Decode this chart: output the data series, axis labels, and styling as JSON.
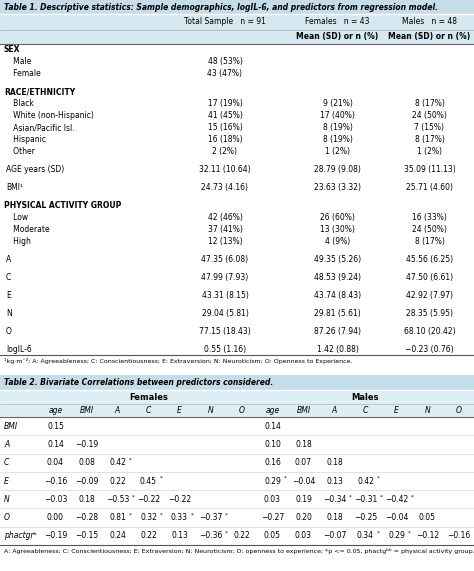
{
  "title1": "Table 1. Descriptive statistics: Sample demographics, logIL-6, and predictors from regression model.",
  "title2": "Table 2. Bivariate Correlations between predictors considered.",
  "table1_headers": [
    "",
    "Total Sample   n = 91",
    "Females   n = 43",
    "Males   n = 48"
  ],
  "table1_subheaders": [
    "",
    "",
    "Mean (SD) or n (%)",
    "Mean (SD) or n (%)"
  ],
  "table1_rows": [
    [
      "SEX",
      "",
      "",
      ""
    ],
    [
      "   Male",
      "48 (53%)",
      "",
      ""
    ],
    [
      "   Female",
      "43 (47%)",
      "",
      ""
    ],
    [
      "",
      "",
      "",
      ""
    ],
    [
      "RACE/ETHNICITY",
      "",
      "",
      ""
    ],
    [
      "   Black",
      "17 (19%)",
      "9 (21%)",
      "8 (17%)"
    ],
    [
      "   White (non-Hispanic)",
      "41 (45%)",
      "17 (40%)",
      "24 (50%)"
    ],
    [
      "   Asian/Pacific Isl.",
      "15 (16%)",
      "8 (19%)",
      "7 (15%)"
    ],
    [
      "   Hispanic",
      "16 (18%)",
      "8 (19%)",
      "8 (17%)"
    ],
    [
      "   Other",
      "2 (2%)",
      "1 (2%)",
      "1 (2%)"
    ],
    [
      "",
      "",
      "",
      ""
    ],
    [
      "AGE years (SD)",
      "32.11 (10.64)",
      "28.79 (9.08)",
      "35.09 (11.13)"
    ],
    [
      "",
      "",
      "",
      ""
    ],
    [
      "BMI¹",
      "24.73 (4.16)",
      "23.63 (3.32)",
      "25.71 (4.60)"
    ],
    [
      "",
      "",
      "",
      ""
    ],
    [
      "PHYSICAL ACTIVITY GROUP",
      "",
      "",
      ""
    ],
    [
      "   Low",
      "42 (46%)",
      "26 (60%)",
      "16 (33%)"
    ],
    [
      "   Moderate",
      "37 (41%)",
      "13 (30%)",
      "24 (50%)"
    ],
    [
      "   High",
      "12 (13%)",
      "4 (9%)",
      "8 (17%)"
    ],
    [
      "",
      "",
      "",
      ""
    ],
    [
      "A",
      "47.35 (6.08)",
      "49.35 (5.26)",
      "45.56 (6.25)"
    ],
    [
      "",
      "",
      "",
      ""
    ],
    [
      "C",
      "47.99 (7.93)",
      "48.53 (9.24)",
      "47.50 (6.61)"
    ],
    [
      "",
      "",
      "",
      ""
    ],
    [
      "E",
      "43.31 (8.15)",
      "43.74 (8.43)",
      "42.92 (7.97)"
    ],
    [
      "",
      "",
      "",
      ""
    ],
    [
      "N",
      "29.04 (5.81)",
      "29.81 (5.61)",
      "28.35 (5.95)"
    ],
    [
      "",
      "",
      "",
      ""
    ],
    [
      "O",
      "77.15 (18.43)",
      "87.26 (7.94)",
      "68.10 (20.42)"
    ],
    [
      "",
      "",
      "",
      ""
    ],
    [
      "logIL-6",
      "0.55 (1.16)",
      "1.42 (0.88)",
      "−0.23 (0.76)"
    ]
  ],
  "table1_footnote": "¹kg·m⁻²; A: Agreeableness; C: Conscientiousness; E: Extraversion; N: Neuroticism; O: Openness to Experience.",
  "table2_col_names": [
    "age",
    "BMI",
    "A",
    "C",
    "E",
    "N",
    "O"
  ],
  "table2_row_labels": [
    "BMI",
    "A",
    "C",
    "E",
    "N",
    "O",
    "phactgrᵇ"
  ],
  "table2_females": [
    [
      "0.15",
      "",
      "",
      "",
      "",
      "",
      ""
    ],
    [
      "0.14",
      "−0.19",
      "",
      "",
      "",
      "",
      ""
    ],
    [
      "0.04",
      "0.08",
      "0.42*",
      "",
      "",
      "",
      ""
    ],
    [
      "−0.16",
      "−0.09",
      "0.22",
      "0.45*",
      "",
      "",
      ""
    ],
    [
      "−0.03",
      "0.18",
      "−0.53*",
      "−0.22",
      "−0.22",
      "",
      ""
    ],
    [
      "0.00",
      "−0.28",
      "0.81*",
      "0.32*",
      "0.33*",
      "−0.37*",
      ""
    ],
    [
      "−0.19",
      "−0.15",
      "0.24",
      "0.22",
      "0.13",
      "−0.36*",
      "0.22"
    ]
  ],
  "table2_males": [
    [
      "0.14",
      "",
      "",
      "",
      "",
      "",
      ""
    ],
    [
      "0.10",
      "0.18",
      "",
      "",
      "",
      "",
      ""
    ],
    [
      "0.16",
      "0.07",
      "0.18",
      "",
      "",
      "",
      ""
    ],
    [
      "0.29*",
      "−0.04",
      "0.13",
      "0.42*",
      "",
      "",
      ""
    ],
    [
      "0.03",
      "0.19",
      "−0.34*",
      "−0.31*",
      "−0.42*",
      "",
      ""
    ],
    [
      "−0.27",
      "0.20",
      "0.18",
      "−0.25",
      "−0.04",
      "0.05",
      ""
    ],
    [
      "0.05",
      "0.03",
      "−0.07",
      "0.34*",
      "0.29*",
      "−0.12",
      "−0.16"
    ]
  ],
  "table2_footnote": "A: Agreeableness; C: Conscientiousness; E: Extraversion; N: Neuroticism; O: openness to experience; *p <= 0.05, phactgᵇᵇ = physical activity group.",
  "title_bg": "#c5dde8",
  "header_bg": "#d5e8f0",
  "col_header_bg": "#ddeef5"
}
